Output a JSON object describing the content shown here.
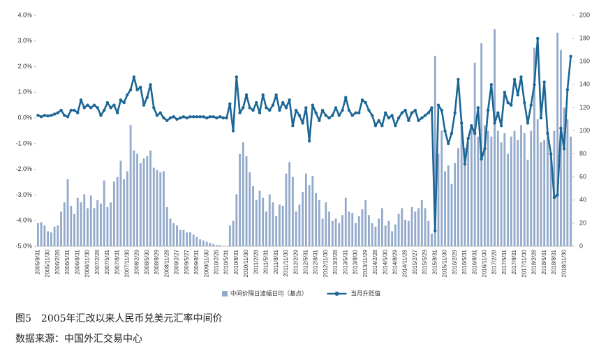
{
  "chart_data": {
    "type": "combo",
    "caption": "图5　2005年汇改以来人民币兑美元汇率中间价",
    "source": "数据来源：中国外汇交易中心",
    "categories": [
      "2005/8/31",
      null,
      null,
      "2005/11/30",
      null,
      null,
      "2006/2/28",
      null,
      null,
      "2006/5/31",
      null,
      null,
      "2006/8/31",
      null,
      null,
      "2006/11/30",
      null,
      null,
      "2007/2/28",
      null,
      null,
      "2007/5/31",
      null,
      null,
      "2007/8/31",
      null,
      null,
      "2007/11/30",
      null,
      null,
      "2008/2/29",
      null,
      null,
      "2008/5/30",
      null,
      null,
      "2008/8/29",
      null,
      null,
      "2008/11/28",
      null,
      null,
      "2009/2/27",
      null,
      null,
      "2009/5/27",
      null,
      null,
      "2009/8/31",
      null,
      null,
      "2009/11/30",
      null,
      null,
      "2010/2/26",
      null,
      null,
      "2010/5/31",
      null,
      null,
      "2010/8/31",
      null,
      null,
      "2010/11/30",
      null,
      null,
      "2011/2/28",
      null,
      null,
      "2011/5/31",
      null,
      null,
      "2011/8/31",
      null,
      null,
      "2011/11/30",
      null,
      null,
      "2012/2/29",
      null,
      null,
      "2012/5/31",
      null,
      null,
      "2012/8/31",
      null,
      null,
      "2012/11/30",
      null,
      null,
      "2013/2/28",
      null,
      null,
      "2013/5/31",
      null,
      null,
      "2013/8/30",
      null,
      null,
      "2013/11/29",
      null,
      null,
      "2014/2/28",
      null,
      null,
      "2014/5/30",
      null,
      null,
      "2014/8/29",
      null,
      null,
      "2014/11/28",
      null,
      null,
      "2015/2/27",
      null,
      null,
      "2015/5/29",
      null,
      null,
      "2015/8/31",
      null,
      null,
      "2015/11/30",
      null,
      null,
      "2016/2/29",
      null,
      null,
      "2016/5/31",
      null,
      null,
      "2016/8/31",
      null,
      null,
      "2016/11/30",
      null,
      null,
      "2017/2/28",
      null,
      null,
      "2017/5/31",
      null,
      null,
      "2017/8/31",
      null,
      null,
      "2017/11/30",
      null,
      null,
      "2018/2/28",
      null,
      null,
      "2018/5/31",
      null,
      null,
      "2018/8/31",
      null,
      null,
      "2018/11/30",
      null,
      null
    ],
    "series": [
      {
        "name": "中间价隔日波幅日均（基点）",
        "type": "bar",
        "axis": "y2",
        "color": "#93aacb",
        "values": [
          20,
          21,
          18,
          13,
          12,
          17,
          18,
          30,
          38,
          58,
          35,
          28,
          42,
          38,
          45,
          33,
          44,
          33,
          40,
          37,
          57,
          34,
          38,
          56,
          60,
          74,
          58,
          65,
          105,
          83,
          80,
          72,
          76,
          78,
          83,
          68,
          66,
          64,
          65,
          34,
          24,
          20,
          18,
          14,
          14,
          12,
          12,
          10,
          8,
          6,
          5,
          4,
          3,
          2,
          1,
          1,
          0,
          0,
          18,
          22,
          45,
          80,
          90,
          78,
          64,
          52,
          40,
          48,
          42,
          30,
          45,
          38,
          26,
          36,
          35,
          63,
          73,
          60,
          30,
          36,
          47,
          63,
          53,
          61,
          46,
          40,
          24,
          38,
          30,
          22,
          24,
          20,
          27,
          42,
          30,
          29,
          20,
          26,
          32,
          40,
          27,
          20,
          17,
          24,
          33,
          18,
          22,
          13,
          19,
          28,
          33,
          23,
          22,
          34,
          30,
          33,
          40,
          33,
          22,
          11,
          165,
          80,
          100,
          65,
          70,
          54,
          72,
          85,
          107,
          85,
          90,
          105,
          159,
          95,
          176,
          105,
          100,
          95,
          188,
          100,
          90,
          98,
          80,
          95,
          100,
          92,
          105,
          98,
          75,
          100,
          172,
          110,
          90,
          92,
          95,
          80,
          100,
          185,
          170,
          120,
          110,
          95
        ]
      },
      {
        "name": "当月升贬值",
        "type": "line",
        "color": "#1b6695",
        "values": [
          0.1,
          0.05,
          0.1,
          0.08,
          0.1,
          0.15,
          0.2,
          0.3,
          0.1,
          0.05,
          0.3,
          0.3,
          0.2,
          0.7,
          0.4,
          0.5,
          0.4,
          0.5,
          0.4,
          0.1,
          0.3,
          0.6,
          0.4,
          0.5,
          0.2,
          0.7,
          0.6,
          0.9,
          1.1,
          1.6,
          1.1,
          1.2,
          0.5,
          0.8,
          1.3,
          0.4,
          0.1,
          0.2,
          0.0,
          -0.1,
          0.0,
          0.05,
          -0.05,
          0.0,
          0.05,
          0.0,
          0.05,
          0.05,
          0.05,
          0.05,
          0.05,
          0.0,
          0.05,
          0.05,
          0.0,
          0.05,
          0.0,
          0.0,
          0.55,
          -0.5,
          1.6,
          0.2,
          0.4,
          0.9,
          0.4,
          0.3,
          0.6,
          0.2,
          0.9,
          0.4,
          0.3,
          0.5,
          0.9,
          0.3,
          0.6,
          0.4,
          0.7,
          -0.3,
          0.3,
          0.1,
          -0.2,
          0.4,
          -0.9,
          0.5,
          0.2,
          -0.1,
          0.3,
          0.1,
          0.0,
          0.1,
          0.4,
          0.1,
          0.3,
          0.8,
          0.3,
          0.1,
          0.2,
          0.2,
          0.7,
          0.6,
          0.3,
          0.1,
          -0.3,
          -0.1,
          -0.3,
          0.2,
          0.0,
          0.1,
          -0.3,
          0.0,
          0.2,
          0.3,
          -0.1,
          0.2,
          0.3,
          -0.1,
          0.0,
          0.1,
          0.2,
          0.4,
          -4.4,
          0.5,
          0.3,
          -0.5,
          -1.0,
          -0.6,
          0.2,
          1.5,
          -0.2,
          -1.8,
          -0.8,
          -0.3,
          -0.6,
          0.4,
          -1.6,
          -1.2,
          0.3,
          1.3,
          -0.2,
          0.2,
          -0.3,
          1.0,
          0.6,
          0.5,
          1.5,
          0.9,
          1.6,
          0.6,
          -0.2,
          0.5,
          1.3,
          3.1,
          0.0,
          1.4,
          -0.6,
          -1.4,
          -3.1,
          -3.0,
          -0.4,
          -1.2,
          1.1,
          2.4
        ]
      }
    ],
    "ylim": [
      -5,
      4
    ],
    "yticks": [
      {
        "value": -5,
        "label": "-5.0%"
      },
      {
        "value": -4,
        "label": "-4.0%"
      },
      {
        "value": -3,
        "label": "-3.0%"
      },
      {
        "value": -2,
        "label": "-2.0%"
      },
      {
        "value": -1,
        "label": "-1.0%"
      },
      {
        "value": 0,
        "label": "0.0%"
      },
      {
        "value": 1,
        "label": "1.0%"
      },
      {
        "value": 2,
        "label": "2.0%"
      },
      {
        "value": 3,
        "label": "3.0%"
      },
      {
        "value": 4,
        "label": "4.0%"
      }
    ],
    "y2lim": [
      0,
      200
    ],
    "y2ticks": [
      0,
      20,
      40,
      60,
      80,
      100,
      120,
      140,
      160,
      180,
      200
    ],
    "grid": false,
    "legend": "bottom"
  }
}
